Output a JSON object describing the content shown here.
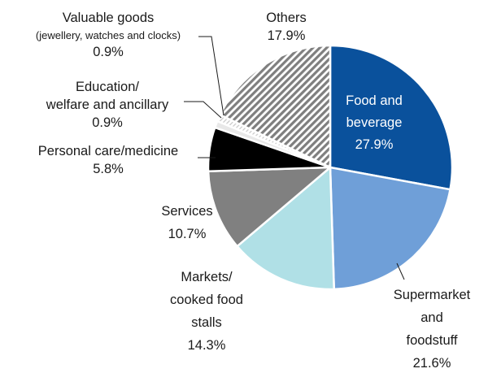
{
  "chart_data": {
    "type": "pie",
    "start_angle_deg": 0,
    "direction": "clockwise",
    "slices": [
      {
        "lines": [
          "Food and",
          "beverage"
        ],
        "value": 27.9,
        "value_label": "27.9%",
        "color": "#0a519c",
        "pattern": "solid",
        "label_inside": true
      },
      {
        "lines": [
          "Supermarket",
          "and",
          "foodstuff"
        ],
        "value": 21.6,
        "value_label": "21.6%",
        "color": "#6f9fd8",
        "pattern": "solid"
      },
      {
        "lines": [
          "Markets/",
          "cooked food",
          "stalls"
        ],
        "value": 14.3,
        "value_label": "14.3%",
        "color": "#b0e0e6",
        "pattern": "solid"
      },
      {
        "lines": [
          "Services"
        ],
        "value": 10.7,
        "value_label": "10.7%",
        "color": "#808080",
        "pattern": "solid"
      },
      {
        "lines": [
          "Personal care/medicine"
        ],
        "value": 5.8,
        "value_label": "5.8%",
        "color": "#000000",
        "pattern": "solid"
      },
      {
        "lines": [
          "Education/",
          "welfare and ancillary"
        ],
        "value": 0.9,
        "value_label": "0.9%",
        "color": "#e8e8e8",
        "pattern": "solid"
      },
      {
        "lines": [
          "Valuable goods",
          "(jewellery, watches and clocks)"
        ],
        "value": 0.9,
        "value_label": "0.9%",
        "color": "#f4f4f4",
        "pattern": "light"
      },
      {
        "lines": [
          "Others"
        ],
        "value": 17.9,
        "value_label": "17.9%",
        "color": "#7f7f7f",
        "pattern": "hatch"
      }
    ]
  }
}
